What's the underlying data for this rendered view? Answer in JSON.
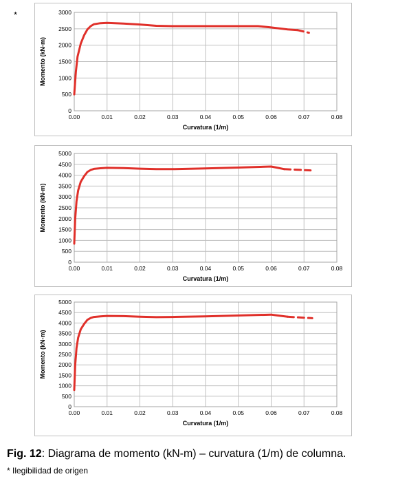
{
  "marker": "*",
  "caption": {
    "fig_label": "Fig. 12",
    "text": ": Diagrama de momento (kN-m) – curvatura (1/m) de columna.",
    "note": "* Ilegibilidad de origen"
  },
  "colors": {
    "series": "#e0302a",
    "grid": "#bfbfbf",
    "frame": "#bfbfbf"
  },
  "chart_data": [
    {
      "type": "line",
      "xlabel": "Curvatura (1/m)",
      "ylabel": "Momento (kN-m)",
      "xlim": [
        0,
        0.08
      ],
      "ylim": [
        0,
        3000
      ],
      "x_ticks": [
        "0.00",
        "0.01",
        "0.02",
        "0.03",
        "0.04",
        "0.05",
        "0.06",
        "0.07",
        "0.08"
      ],
      "y_ticks": [
        "0",
        "500",
        "1000",
        "1500",
        "2000",
        "2500",
        "3000"
      ],
      "grid": true,
      "series": [
        {
          "style": "solid",
          "x": [
            0,
            0.0005,
            0.001,
            0.002,
            0.003,
            0.004,
            0.005,
            0.006,
            0.008,
            0.01,
            0.015,
            0.02,
            0.025,
            0.03,
            0.04,
            0.05,
            0.056,
            0.06,
            0.065,
            0.068
          ],
          "y": [
            500,
            1200,
            1650,
            2050,
            2300,
            2480,
            2580,
            2640,
            2670,
            2680,
            2660,
            2630,
            2590,
            2580,
            2580,
            2580,
            2580,
            2540,
            2480,
            2460
          ]
        },
        {
          "style": "dashed",
          "x": [
            0.068,
            0.0715
          ],
          "y": [
            2460,
            2380
          ]
        }
      ]
    },
    {
      "type": "line",
      "xlabel": "Curvatura (1/m)",
      "ylabel": "Momento (kN-m)",
      "xlim": [
        0,
        0.08
      ],
      "ylim": [
        0,
        5000
      ],
      "x_ticks": [
        "0.00",
        "0.01",
        "0.02",
        "0.03",
        "0.04",
        "0.05",
        "0.06",
        "0.07",
        "0.08"
      ],
      "y_ticks": [
        "0",
        "500",
        "1000",
        "1500",
        "2000",
        "2500",
        "3000",
        "3500",
        "4000",
        "4500",
        "5000"
      ],
      "grid": true,
      "series": [
        {
          "style": "solid",
          "x": [
            0,
            0.0003,
            0.0007,
            0.0012,
            0.002,
            0.003,
            0.004,
            0.005,
            0.006,
            0.008,
            0.01,
            0.015,
            0.02,
            0.025,
            0.03,
            0.04,
            0.05,
            0.06,
            0.062,
            0.064
          ],
          "y": [
            850,
            2000,
            2800,
            3300,
            3700,
            3950,
            4150,
            4240,
            4290,
            4320,
            4340,
            4330,
            4300,
            4280,
            4280,
            4310,
            4350,
            4400,
            4340,
            4280
          ]
        },
        {
          "style": "dashed",
          "x": [
            0.064,
            0.072
          ],
          "y": [
            4280,
            4220
          ]
        }
      ]
    },
    {
      "type": "line",
      "xlabel": "Curvatura (1/m)",
      "ylabel": "Momento (kN-m)",
      "xlim": [
        0,
        0.08
      ],
      "ylim": [
        0,
        5000
      ],
      "x_ticks": [
        "0.00",
        "0.01",
        "0.02",
        "0.03",
        "0.04",
        "0.05",
        "0.06",
        "0.07",
        "0.08"
      ],
      "y_ticks": [
        "0",
        "500",
        "1000",
        "1500",
        "2000",
        "2500",
        "3000",
        "3500",
        "4000",
        "4500",
        "5000"
      ],
      "grid": true,
      "series": [
        {
          "style": "solid",
          "x": [
            0,
            0.0003,
            0.0007,
            0.0012,
            0.002,
            0.003,
            0.004,
            0.005,
            0.006,
            0.008,
            0.01,
            0.015,
            0.02,
            0.025,
            0.03,
            0.04,
            0.05,
            0.06,
            0.062,
            0.065
          ],
          "y": [
            800,
            2000,
            2800,
            3300,
            3700,
            3950,
            4150,
            4240,
            4290,
            4320,
            4340,
            4330,
            4300,
            4280,
            4290,
            4320,
            4360,
            4400,
            4360,
            4300
          ]
        },
        {
          "style": "dashed",
          "x": [
            0.065,
            0.0725
          ],
          "y": [
            4300,
            4230
          ]
        }
      ]
    }
  ]
}
